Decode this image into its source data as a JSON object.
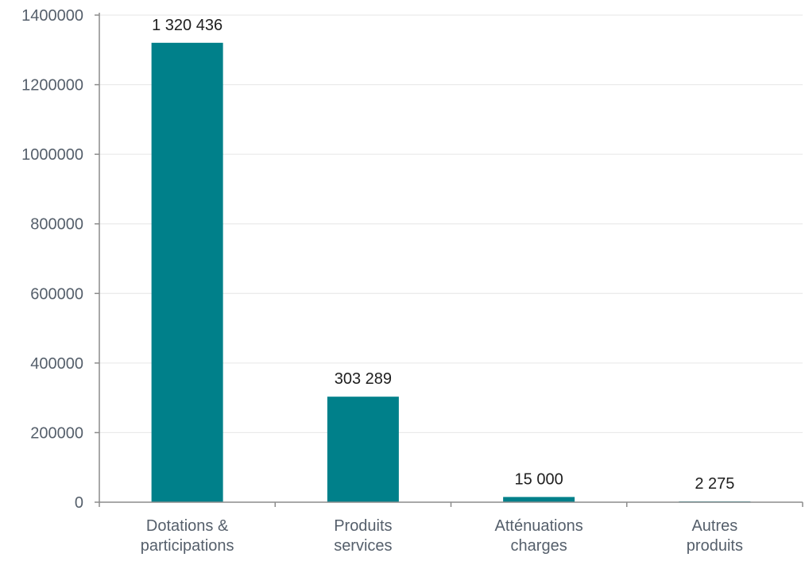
{
  "chart_data": {
    "type": "bar",
    "categories": [
      [
        "Dotations &",
        "participations"
      ],
      [
        "Produits",
        "services"
      ],
      [
        "Atténuations",
        "charges"
      ],
      [
        "Autres",
        "produits"
      ]
    ],
    "values": [
      1320436,
      303289,
      15000,
      2275
    ],
    "data_labels": [
      "1 320 436",
      "303 289",
      "15 000",
      "2 275"
    ],
    "ylim": [
      0,
      1400000
    ],
    "yticks": [
      0,
      200000,
      400000,
      600000,
      800000,
      1000000,
      1200000,
      1400000
    ],
    "ytick_labels": [
      "0",
      "200000",
      "400000",
      "600000",
      "800000",
      "1000000",
      "1200000",
      "1400000"
    ],
    "title": "",
    "xlabel": "",
    "ylabel": "",
    "grid": true,
    "legend": "none",
    "colors": {
      "bar": "#00808a",
      "grid": "#e6e6e6",
      "axis": "#8c8c8c",
      "tick_text": "#555f6b",
      "data_label_text": "#1e1e1e"
    }
  }
}
